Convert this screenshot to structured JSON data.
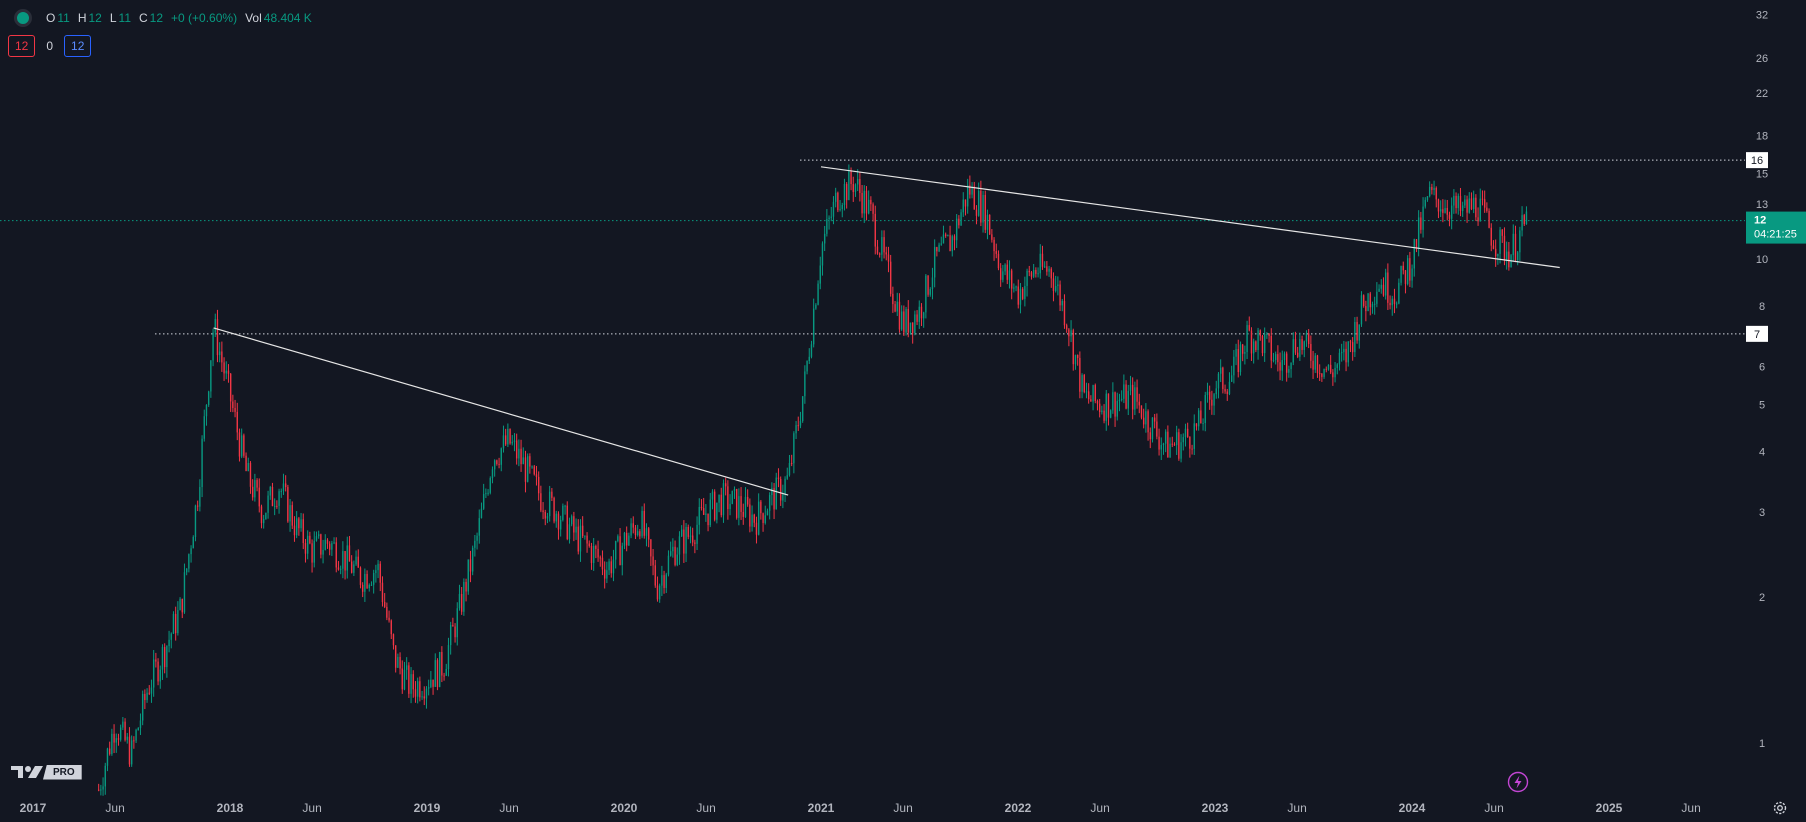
{
  "legend": {
    "open_key": "O",
    "open_val": "11",
    "high_key": "H",
    "high_val": "12",
    "low_key": "L",
    "low_val": "11",
    "close_key": "C",
    "close_val": "12",
    "change": "+0 (+0.60%)",
    "vol_key": "Vol",
    "vol_val": "48.404 K",
    "box_left": "12",
    "middle": "0",
    "box_right": "12"
  },
  "logo": {
    "pro_label": "PRO"
  },
  "price_scale": {
    "last_price": "12",
    "countdown": "04:21:25",
    "level_16": "16",
    "level_7": "7"
  },
  "colors": {
    "background": "#131722",
    "up": "#089981",
    "down": "#f23645",
    "text": "#d1d4dc",
    "last_price_bg": "#089981"
  },
  "chart_data": {
    "type": "line",
    "scale": "log",
    "ylim": [
      0.78,
      33
    ],
    "y_ticks": [
      "32",
      "26",
      "22",
      "18",
      "15",
      "13",
      "10",
      "8",
      "6",
      "5",
      "4",
      "3",
      "2",
      "1"
    ],
    "x_ticks": [
      "2017",
      "Jun",
      "2018",
      "Jun",
      "2019",
      "Jun",
      "2020",
      "Jun",
      "2021",
      "Jun",
      "2022",
      "Jun",
      "2023",
      "Jun",
      "2024",
      "Jun",
      "2025",
      "Jun"
    ],
    "series": [
      {
        "x": [
          "2017-05",
          "2017-06",
          "2017-07",
          "2017-08",
          "2017-09",
          "2017-10",
          "2017-11",
          "2017-12",
          "2018-01",
          "2018-02",
          "2018-03",
          "2018-04",
          "2018-05",
          "2018-06",
          "2018-07",
          "2018-08",
          "2018-09",
          "2018-10",
          "2018-11",
          "2018-12",
          "2019-01",
          "2019-02",
          "2019-03",
          "2019-04",
          "2019-05",
          "2019-06",
          "2019-07",
          "2019-08",
          "2019-09",
          "2019-10",
          "2019-11",
          "2019-12",
          "2020-01",
          "2020-02",
          "2020-03",
          "2020-04",
          "2020-05",
          "2020-06",
          "2020-07",
          "2020-08",
          "2020-09",
          "2020-10",
          "2020-11",
          "2020-12",
          "2021-01",
          "2021-02",
          "2021-03",
          "2021-04",
          "2021-05",
          "2021-06",
          "2021-07",
          "2021-08",
          "2021-09",
          "2021-10",
          "2021-11",
          "2021-12",
          "2022-01",
          "2022-02",
          "2022-03",
          "2022-04",
          "2022-05",
          "2022-06",
          "2022-07",
          "2022-08",
          "2022-09",
          "2022-10",
          "2022-11",
          "2022-12",
          "2023-01",
          "2023-02",
          "2023-03",
          "2023-04",
          "2023-05",
          "2023-06",
          "2023-07",
          "2023-08",
          "2023-09",
          "2023-10",
          "2023-11",
          "2023-12",
          "2024-01",
          "2024-02",
          "2024-03",
          "2024-04",
          "2024-05",
          "2024-06",
          "2024-07",
          "2024-08"
        ],
        "close": [
          0.8,
          1.1,
          0.95,
          1.3,
          1.55,
          1.9,
          3.2,
          7.3,
          5.2,
          3.6,
          3.0,
          3.4,
          2.8,
          2.5,
          2.6,
          2.4,
          2.2,
          2.3,
          1.5,
          1.3,
          1.35,
          1.45,
          1.9,
          2.6,
          3.9,
          4.2,
          3.7,
          3.2,
          3.0,
          2.7,
          2.5,
          2.3,
          2.6,
          2.9,
          2.1,
          2.5,
          2.7,
          3.0,
          3.2,
          3.1,
          2.9,
          3.2,
          3.5,
          5.5,
          10.5,
          13.5,
          14.5,
          12.5,
          9.5,
          7.3,
          7.8,
          10.0,
          11.0,
          14.0,
          12.5,
          9.5,
          8.5,
          9.5,
          9.5,
          7.5,
          5.2,
          5.0,
          5.1,
          5.2,
          4.6,
          4.1,
          4.2,
          4.5,
          5.5,
          5.7,
          7.0,
          6.7,
          6.0,
          6.8,
          6.3,
          5.8,
          6.3,
          8.0,
          9.0,
          8.5,
          10.0,
          13.5,
          13.0,
          12.5,
          13.0,
          11.0,
          10.3,
          12.0
        ]
      }
    ],
    "horizontal_levels": [
      16,
      7
    ],
    "trendlines": [
      {
        "from": [
          "2017-12",
          7.2
        ],
        "to": [
          "2020-11",
          3.25
        ]
      },
      {
        "from": [
          "2021-01",
          15.5
        ],
        "to": [
          "2024-10",
          9.6
        ]
      }
    ]
  }
}
